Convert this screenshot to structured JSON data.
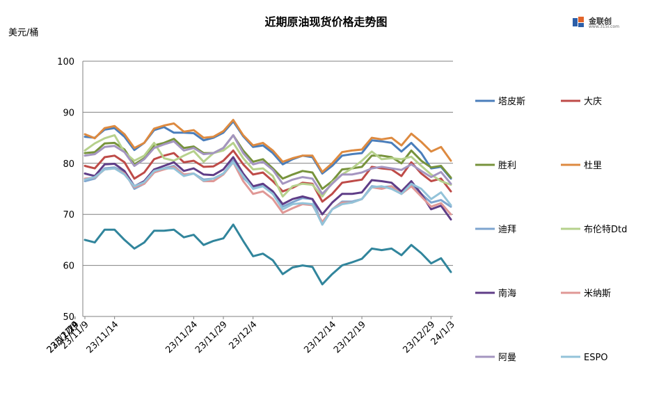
{
  "header": {
    "title": "近期原油现货价格走势图",
    "y_unit": "美元/桶",
    "logo_text": "金联创",
    "logo_sub": "www.315i.com",
    "logo_reg": "®"
  },
  "chart_data": {
    "type": "line",
    "title": "近期原油现货价格走势图",
    "ylabel": "美元/桶",
    "xlabel": "",
    "ylim": [
      50,
      100
    ],
    "yticks": [
      50,
      60,
      70,
      80,
      90,
      100
    ],
    "grid": "horizontal",
    "legend_position": "right",
    "x_tick_labels": [
      "23/11/9",
      "23/11/14",
      "23/11/19",
      "23/11/24",
      "23/11/29",
      "23/12/4",
      "23/12/9",
      "23/12/14",
      "23/12/19",
      "23/12/24",
      "23/12/29",
      "24/1/3"
    ],
    "x": [
      "23/11/9",
      "23/11/10",
      "23/11/13",
      "23/11/14",
      "23/11/15",
      "23/11/16",
      "23/11/17",
      "23/11/20",
      "23/11/21",
      "23/11/22",
      "23/11/23",
      "23/11/24",
      "23/11/27",
      "23/11/28",
      "23/11/29",
      "23/11/30",
      "23/12/1",
      "23/12/4",
      "23/12/5",
      "23/12/6",
      "23/12/7",
      "23/12/8",
      "23/12/11",
      "23/12/12",
      "23/12/13",
      "23/12/14",
      "23/12/15",
      "23/12/18",
      "23/12/19",
      "23/12/20",
      "23/12/21",
      "23/12/22",
      "23/12/26",
      "23/12/27",
      "23/12/28",
      "23/12/29",
      "24/1/2",
      "24/1/3"
    ],
    "series": [
      {
        "name": "塔皮斯",
        "color": "#4a7ebb",
        "values": [
          85.2,
          85.0,
          86.6,
          86.9,
          85.2,
          82.6,
          84.0,
          86.5,
          87.1,
          86.0,
          86.0,
          85.9,
          84.5,
          85.0,
          86.0,
          88.2,
          85.3,
          83.2,
          83.5,
          82.0,
          79.8,
          80.8,
          81.5,
          81.2,
          78.0,
          79.5,
          81.5,
          81.8,
          82.0,
          84.5,
          84.3,
          84.0,
          82.3,
          84.0,
          82.0,
          79.0,
          79.3,
          77.0
        ]
      },
      {
        "name": "大庆",
        "color": "#be4b48",
        "values": [
          79.5,
          79.0,
          81.2,
          81.5,
          80.2,
          77.0,
          78.2,
          80.8,
          81.5,
          82.0,
          80.2,
          80.5,
          79.3,
          79.4,
          80.5,
          82.5,
          79.8,
          77.8,
          78.2,
          76.5,
          74.5,
          75.2,
          76.2,
          76.0,
          72.5,
          74.0,
          76.2,
          76.5,
          76.8,
          79.3,
          79.0,
          78.8,
          77.5,
          80.2,
          78.0,
          76.5,
          77.0,
          74.5
        ]
      },
      {
        "name": "胜利",
        "color": "#77933c",
        "values": [
          82.0,
          82.2,
          83.9,
          84.0,
          82.7,
          79.8,
          81.0,
          83.5,
          84.0,
          84.8,
          83.0,
          83.3,
          82.0,
          82.0,
          83.0,
          85.5,
          82.5,
          80.3,
          80.8,
          79.0,
          77.0,
          77.8,
          78.5,
          78.2,
          75.0,
          76.5,
          78.8,
          79.0,
          79.3,
          81.5,
          81.5,
          81.2,
          80.0,
          82.5,
          80.5,
          79.2,
          79.5,
          77.2
        ]
      },
      {
        "name": "杜里",
        "color": "#dd8a40",
        "values": [
          85.7,
          84.9,
          86.9,
          87.3,
          85.7,
          83.0,
          84.0,
          86.8,
          87.4,
          87.8,
          86.2,
          86.5,
          85.0,
          85.2,
          86.3,
          88.5,
          85.5,
          83.5,
          84.0,
          82.5,
          80.3,
          81.0,
          81.5,
          81.5,
          78.3,
          80.0,
          82.2,
          82.5,
          82.7,
          85.0,
          84.7,
          85.0,
          83.5,
          85.8,
          84.2,
          82.3,
          83.2,
          80.5
        ]
      },
      {
        "name": "迪拜",
        "color": "#7ea5cf",
        "values": [
          76.5,
          77.0,
          79.0,
          79.2,
          78.3,
          75.0,
          76.0,
          78.2,
          79.0,
          79.5,
          77.8,
          78.0,
          76.8,
          77.0,
          78.0,
          80.5,
          77.2,
          75.3,
          75.7,
          74.0,
          71.5,
          72.4,
          73.2,
          73.0,
          68.0,
          71.0,
          72.5,
          72.5,
          73.0,
          75.5,
          75.3,
          75.5,
          74.5,
          75.8,
          74.0,
          72.3,
          72.8,
          71.5
        ]
      },
      {
        "name": "布伦特Dtd",
        "color": "#b6d18c",
        "values": [
          82.5,
          83.9,
          84.9,
          85.5,
          82.2,
          80.5,
          81.5,
          84.0,
          81.0,
          80.5,
          81.5,
          82.4,
          80.3,
          82.0,
          82.5,
          84.0,
          81.0,
          78.8,
          79.0,
          77.5,
          73.5,
          75.5,
          76.0,
          75.8,
          73.5,
          76.3,
          77.8,
          79.0,
          80.5,
          82.3,
          80.8,
          81.0,
          80.8,
          81.3,
          79.5,
          77.8,
          76.5,
          75.8
        ]
      },
      {
        "name": "南海",
        "color": "#5f3d87",
        "values": [
          78.0,
          77.5,
          79.8,
          79.9,
          78.5,
          75.5,
          76.5,
          78.8,
          79.5,
          80.2,
          78.5,
          79.0,
          77.8,
          77.7,
          78.8,
          81.2,
          78.0,
          75.5,
          76.0,
          74.5,
          72.0,
          73.0,
          73.5,
          73.0,
          70.0,
          72.3,
          74.0,
          74.0,
          74.3,
          76.7,
          76.5,
          76.2,
          74.5,
          76.5,
          74.0,
          71.0,
          71.7,
          69.0
        ]
      },
      {
        "name": "米纳斯",
        "color": "#e09896",
        "values": [
          77.0,
          77.2,
          78.8,
          79.0,
          78.0,
          75.3,
          76.0,
          78.2,
          78.8,
          79.3,
          77.8,
          78.0,
          76.5,
          76.5,
          77.8,
          80.2,
          76.5,
          74.0,
          74.5,
          73.0,
          70.3,
          71.2,
          72.0,
          71.8,
          68.5,
          71.0,
          72.3,
          72.3,
          73.0,
          75.3,
          75.0,
          75.5,
          74.0,
          75.5,
          73.5,
          71.5,
          72.2,
          70.0
        ]
      },
      {
        "name": "阿曼",
        "color": "#a495c0",
        "values": [
          81.5,
          81.8,
          83.2,
          83.4,
          82.2,
          79.5,
          80.8,
          83.0,
          83.7,
          84.3,
          82.5,
          83.0,
          81.8,
          82.0,
          83.0,
          85.5,
          82.0,
          79.8,
          80.3,
          78.7,
          76.0,
          76.8,
          77.3,
          77.0,
          74.0,
          76.0,
          77.8,
          77.8,
          78.2,
          79.0,
          79.3,
          79.0,
          78.7,
          79.8,
          78.5,
          77.3,
          78.3,
          76.0
        ]
      },
      {
        "name": "ESPO",
        "color": "#93c3d9",
        "values": [
          76.8,
          77.3,
          78.8,
          79.0,
          77.8,
          75.5,
          76.3,
          78.5,
          79.0,
          79.0,
          77.5,
          78.0,
          76.6,
          77.0,
          78.0,
          80.2,
          77.5,
          75.0,
          75.5,
          74.0,
          71.0,
          72.0,
          72.2,
          72.0,
          68.0,
          71.0,
          72.0,
          72.3,
          73.0,
          75.3,
          75.5,
          75.0,
          74.0,
          76.0,
          75.0,
          73.0,
          74.3,
          71.8
        ]
      },
      {
        "name": "",
        "color": "#31859c",
        "values": [
          65.0,
          64.5,
          67.0,
          67.0,
          65.0,
          63.3,
          64.5,
          66.8,
          66.8,
          67.0,
          65.5,
          66.0,
          64.0,
          64.8,
          65.3,
          68.0,
          64.8,
          61.8,
          62.3,
          61.0,
          58.3,
          59.6,
          60.0,
          59.7,
          56.3,
          58.3,
          60.0,
          60.6,
          61.3,
          63.3,
          63.0,
          63.3,
          62.0,
          64.0,
          62.4,
          60.4,
          61.4,
          58.7
        ]
      }
    ]
  }
}
